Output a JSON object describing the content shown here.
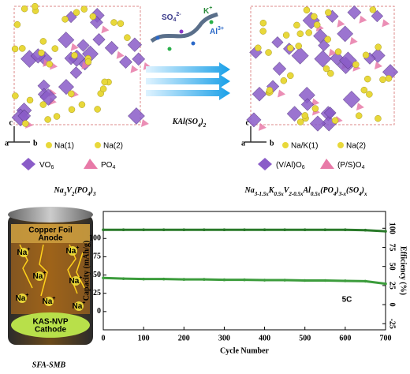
{
  "left_structure": {
    "axis_c": "c",
    "axis_a": "a",
    "axis_b": "b",
    "na1": "Na(1)",
    "na2": "Na(2)",
    "octahedron": [
      "VO",
      "6"
    ],
    "tetrahedron": [
      "PO",
      "4"
    ],
    "formula": [
      "Na",
      "3",
      "V",
      "2",
      "(PO",
      "4",
      ")",
      "3"
    ]
  },
  "reaction": {
    "ions": [
      {
        "base": "SO",
        "sub": "4",
        "sup": "2-"
      },
      {
        "base": "K",
        "sup": "+"
      },
      {
        "base": "Al",
        "sup": "3+"
      }
    ],
    "reagent": [
      "KAl(SO",
      "4",
      ")",
      "2"
    ]
  },
  "right_structure": {
    "axis_c": "c",
    "axis_a": "a",
    "axis_b": "b",
    "na1": "Na/K(1)",
    "na2": "Na(2)",
    "octahedron": [
      "(V/Al)O",
      "6"
    ],
    "tetrahedron": [
      "(P/S)O",
      "4"
    ],
    "formula": [
      "Na",
      "3-1.5x",
      "K",
      "0.5x",
      "V",
      "2-0.5x",
      "Al",
      "0.5x",
      "(PO",
      "4",
      ")",
      "3-x",
      "(SO",
      "4",
      ")",
      "x"
    ]
  },
  "battery": {
    "anode": [
      "Copper Foil",
      "Anode"
    ],
    "cathode": [
      "KAS-NVP",
      "Cathode"
    ],
    "ions": [
      {
        "base": "Na",
        "sup": "+"
      },
      {
        "base": "Na",
        "sup": "+"
      },
      {
        "base": "Na",
        "sup": "+"
      },
      {
        "base": "Na",
        "sup": "+"
      },
      {
        "base": "Na",
        "sup": "+"
      },
      {
        "base": "Na",
        "sup": "+"
      },
      {
        "base": "Na",
        "sup": "+"
      }
    ],
    "caption": "SFA-SMB"
  },
  "chart_data": {
    "type": "line",
    "x_label": "Cycle Number",
    "y_label": "Capacity (mAh/g)",
    "y2_label": "Efficiency (%)",
    "annotation": "5C",
    "x": [
      0,
      50,
      100,
      150,
      200,
      250,
      300,
      350,
      400,
      450,
      500,
      550,
      600,
      650,
      700
    ],
    "series": [
      {
        "color": "#3c9c3c",
        "values": [
          46,
          45,
          44.5,
          44.5,
          44,
          44,
          43.5,
          43.5,
          43,
          43,
          42.5,
          42.5,
          42,
          41.5,
          38
        ]
      },
      {
        "color": "#2a7a2a",
        "axis": "y2",
        "values": [
          98,
          98,
          98,
          98,
          98,
          98,
          98,
          98,
          98,
          98,
          98,
          98,
          98,
          97.5,
          96
        ]
      }
    ],
    "xlim": [
      0,
      700
    ],
    "xticks": [
      0,
      100,
      200,
      300,
      400,
      500,
      600,
      700
    ],
    "ylim": [
      -25,
      137
    ],
    "yticks": [
      0,
      25,
      50,
      75,
      100
    ],
    "y2lim": [
      -33,
      122
    ],
    "y2ticks": [
      -25,
      0,
      25,
      50,
      75,
      100
    ]
  }
}
